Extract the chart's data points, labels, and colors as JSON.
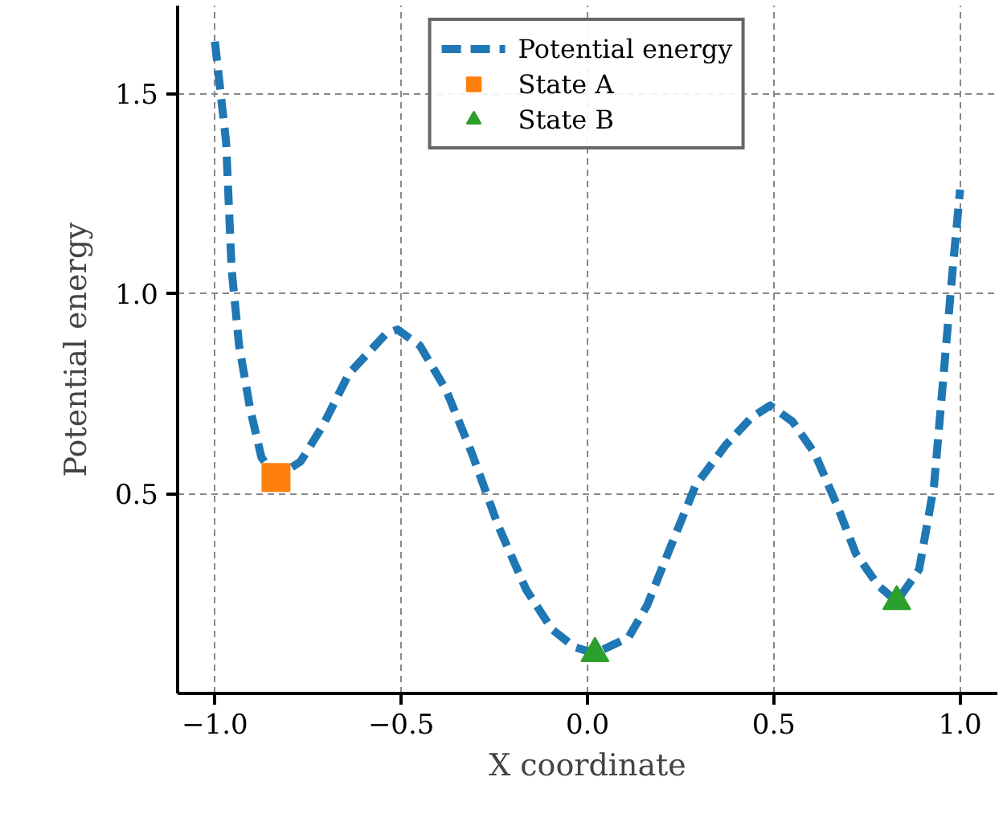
{
  "chart_data": {
    "type": "line",
    "xlabel": "X coordinate",
    "ylabel": "Potential energy",
    "xlim": [
      -1.1,
      1.1
    ],
    "ylim": [
      0.0,
      1.72
    ],
    "xticks": [
      {
        "value": -1.0,
        "label": "−1.0"
      },
      {
        "value": -0.5,
        "label": "−0.5"
      },
      {
        "value": 0.0,
        "label": "0.0"
      },
      {
        "value": 0.5,
        "label": "0.5"
      },
      {
        "value": 1.0,
        "label": "1.0"
      }
    ],
    "yticks": [
      {
        "value": 0.5,
        "label": "0.5"
      },
      {
        "value": 1.0,
        "label": "1.0"
      },
      {
        "value": 1.5,
        "label": "1.5"
      }
    ],
    "grid": true,
    "legend": "top",
    "series": [
      {
        "name": "Potential energy",
        "line_style": "dashed",
        "marker": "none",
        "color": "#1f77b4",
        "x": [
          -1.0,
          -0.97,
          -0.955,
          -0.935,
          -0.905,
          -0.875,
          -0.836,
          -0.77,
          -0.71,
          -0.64,
          -0.54,
          -0.51,
          -0.45,
          -0.38,
          -0.31,
          -0.24,
          -0.165,
          -0.095,
          -0.035,
          0.02,
          0.11,
          0.16,
          0.22,
          0.29,
          0.37,
          0.44,
          0.49,
          0.55,
          0.61,
          0.67,
          0.72,
          0.78,
          0.83,
          0.89,
          0.93,
          0.955,
          0.98,
          1.0
        ],
        "values": [
          1.63,
          1.38,
          1.06,
          0.87,
          0.71,
          0.59,
          0.54,
          0.58,
          0.67,
          0.8,
          0.9,
          0.91,
          0.87,
          0.76,
          0.6,
          0.42,
          0.26,
          0.16,
          0.116,
          0.1,
          0.14,
          0.22,
          0.36,
          0.52,
          0.62,
          0.69,
          0.72,
          0.68,
          0.6,
          0.47,
          0.35,
          0.27,
          0.23,
          0.31,
          0.52,
          0.79,
          1.06,
          1.26
        ]
      },
      {
        "name": "State A",
        "type": "scatter",
        "marker": "square",
        "color": "#ff7f0e",
        "x": [
          -0.836
        ],
        "values": [
          0.54
        ]
      },
      {
        "name": "State B",
        "type": "scatter",
        "marker": "triangle",
        "color": "#2ca02c",
        "x": [
          0.02,
          0.83
        ],
        "values": [
          0.1,
          0.23
        ]
      }
    ]
  }
}
